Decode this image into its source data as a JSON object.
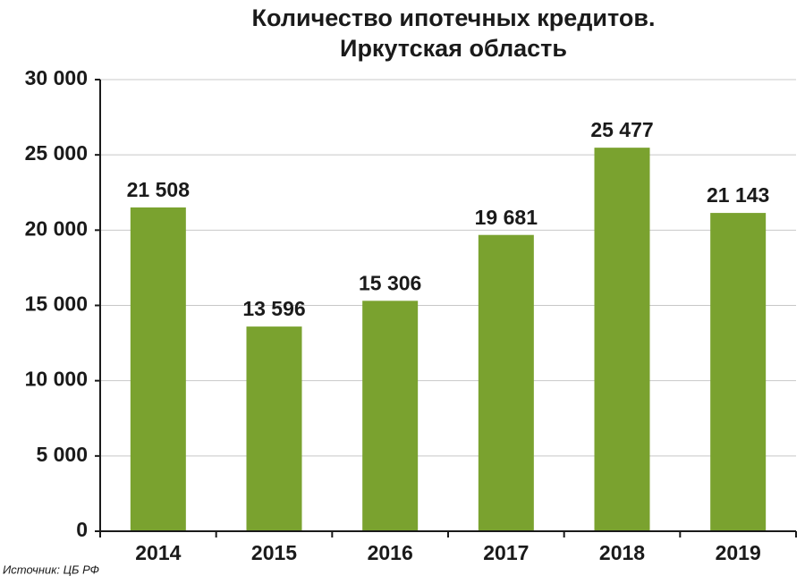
{
  "chart_data": {
    "type": "bar",
    "title": [
      "Количество ипотечных кредитов.",
      "Иркутская область"
    ],
    "categories": [
      "2014",
      "2015",
      "2016",
      "2017",
      "2018",
      "2019"
    ],
    "values": [
      21508,
      13596,
      15306,
      19681,
      25477,
      21143
    ],
    "value_labels": [
      "21 508",
      "13 596",
      "15 306",
      "19 681",
      "25 477",
      "21 143"
    ],
    "color": "#7aa22f",
    "ylim": [
      0,
      30000
    ],
    "yticks": [
      0,
      {
        "value": 5000,
        "label": "5 000"
      },
      {
        "value": 10000,
        "label": "10 000"
      },
      {
        "value": 15000,
        "label": "15 000"
      },
      {
        "value": 20000,
        "label": "20 000"
      },
      {
        "value": 25000,
        "label": "25 000"
      },
      {
        "value": 30000,
        "label": "30 000"
      }
    ],
    "grid": true,
    "source": "Источник: ЦБ РФ"
  }
}
